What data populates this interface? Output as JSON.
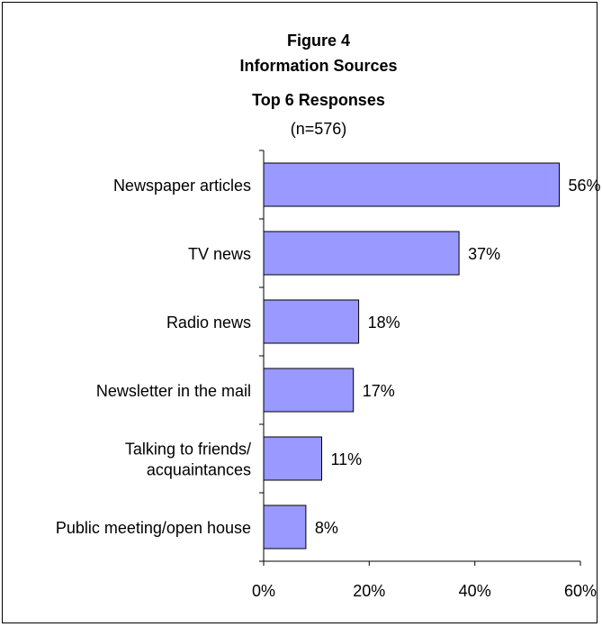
{
  "chart_data": {
    "type": "bar",
    "orientation": "horizontal",
    "title": [
      "Figure 4",
      "Information Sources",
      "Top 6 Responses"
    ],
    "subtitle": "(n=576)",
    "categories": [
      [
        "Newspaper articles"
      ],
      [
        "TV news"
      ],
      [
        "Radio news"
      ],
      [
        "Newsletter in the mail"
      ],
      [
        "Talking to friends/",
        "acquaintances"
      ],
      [
        "Public meeting/open house"
      ]
    ],
    "values": [
      56,
      37,
      18,
      17,
      11,
      8
    ],
    "data_labels": [
      "56%",
      "37%",
      "18%",
      "17%",
      "11%",
      "8%"
    ],
    "xlim": [
      0,
      60
    ],
    "xticks": [
      0,
      20,
      40,
      60
    ],
    "xtick_labels": [
      "0%",
      "20%",
      "40%",
      "60%"
    ],
    "grid": false,
    "colors": {
      "bar_fill": "#9999ff",
      "bar_stroke": "#000000"
    }
  }
}
